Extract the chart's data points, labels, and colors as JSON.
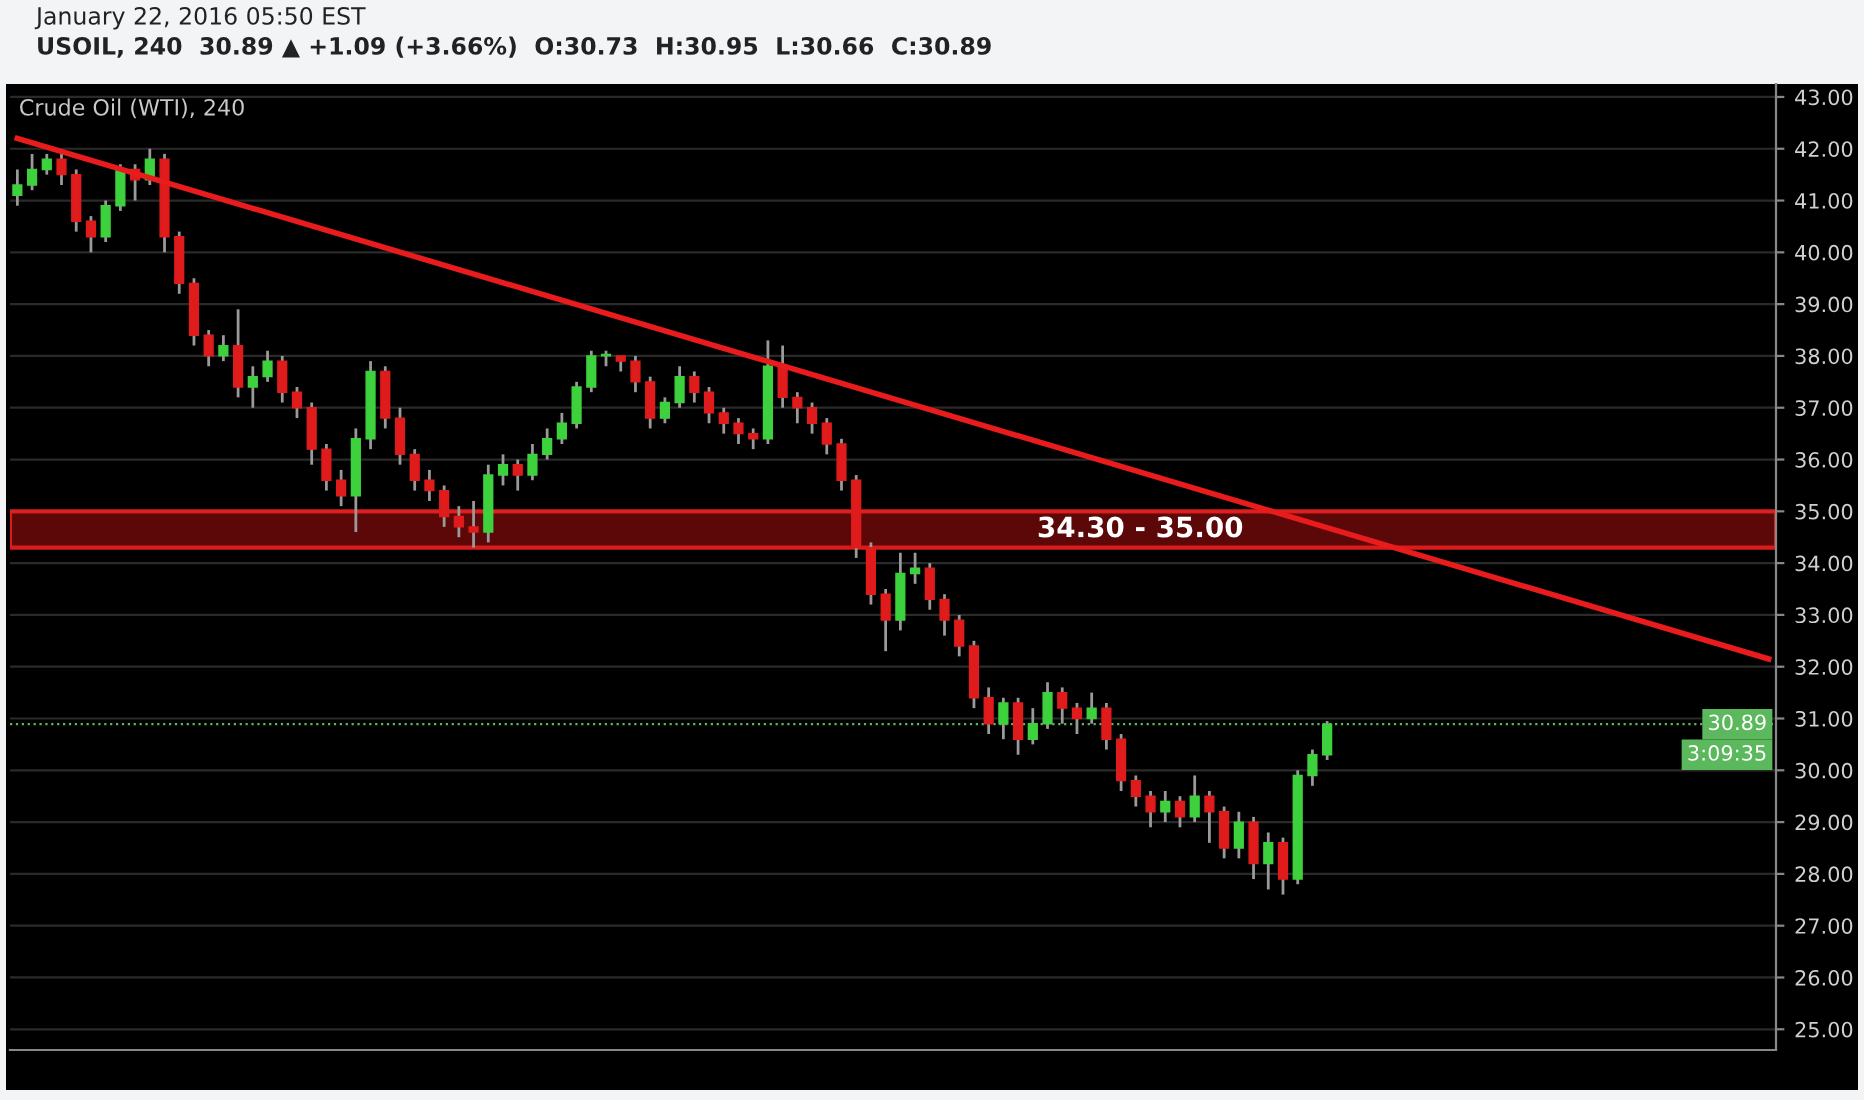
{
  "chart_data": {
    "type": "candlestick",
    "title": "Crude Oil (WTI), 240",
    "subtitle": "USOIL, 240  30.89 ▲ +1.09 (+3.66%)  O:30.73  H:30.95  L:30.66  C:30.89",
    "annotations": [
      "January 22, 2016 05:50 EST",
      "3:09:35"
    ],
    "categories": [
      null,
      null,
      null,
      null,
      null,
      null,
      null,
      null,
      null,
      null,
      null,
      null,
      null,
      null,
      null,
      null,
      null,
      null,
      null,
      null,
      null,
      null,
      null,
      null,
      null,
      null,
      null,
      null,
      null,
      null,
      null,
      null,
      null,
      null,
      null,
      null,
      null,
      null,
      null,
      null,
      null,
      null,
      null,
      null,
      null,
      null,
      null,
      null,
      null,
      null,
      null,
      null,
      null,
      null,
      null,
      null,
      null,
      null,
      null,
      null,
      null,
      null,
      null,
      null,
      null,
      null,
      null,
      null,
      null,
      null,
      null,
      null,
      null,
      null,
      null,
      null,
      null,
      null,
      null,
      null,
      null,
      null,
      null,
      null,
      null,
      null,
      null,
      null,
      null,
      null,
      null,
      null,
      null,
      null,
      null,
      null,
      null,
      null,
      null,
      null,
      null,
      null,
      null,
      null,
      null,
      null,
      null,
      null,
      null,
      null,
      null,
      null,
      null,
      null,
      null,
      null,
      null,
      null,
      null,
      null
    ],
    "ohlc": [
      [
        41.1,
        41.6,
        40.9,
        41.3
      ],
      [
        41.3,
        41.9,
        41.2,
        41.6
      ],
      [
        41.6,
        41.9,
        41.5,
        41.8
      ],
      [
        41.8,
        41.9,
        41.3,
        41.5
      ],
      [
        41.5,
        41.6,
        40.4,
        40.6
      ],
      [
        40.6,
        40.7,
        40.0,
        40.3
      ],
      [
        40.3,
        41.0,
        40.2,
        40.9
      ],
      [
        40.9,
        41.7,
        40.8,
        41.6
      ],
      [
        41.6,
        41.7,
        41.0,
        41.4
      ],
      [
        41.4,
        42.0,
        41.3,
        41.8
      ],
      [
        41.8,
        41.9,
        40.0,
        40.3
      ],
      [
        40.3,
        40.4,
        39.2,
        39.4
      ],
      [
        39.4,
        39.5,
        38.2,
        38.4
      ],
      [
        38.4,
        38.5,
        37.8,
        38.0
      ],
      [
        38.0,
        38.4,
        37.9,
        38.2
      ],
      [
        38.2,
        38.9,
        37.2,
        37.4
      ],
      [
        37.4,
        37.8,
        37.0,
        37.6
      ],
      [
        37.6,
        38.1,
        37.5,
        37.9
      ],
      [
        37.9,
        38.0,
        37.1,
        37.3
      ],
      [
        37.3,
        37.4,
        36.8,
        37.0
      ],
      [
        37.0,
        37.1,
        35.9,
        36.2
      ],
      [
        36.2,
        36.3,
        35.4,
        35.6
      ],
      [
        35.6,
        35.8,
        35.1,
        35.3
      ],
      [
        35.3,
        36.6,
        34.6,
        36.4
      ],
      [
        36.4,
        37.9,
        36.2,
        37.7
      ],
      [
        37.7,
        37.8,
        36.6,
        36.8
      ],
      [
        36.8,
        37.0,
        35.9,
        36.1
      ],
      [
        36.1,
        36.2,
        35.4,
        35.6
      ],
      [
        35.6,
        35.8,
        35.2,
        35.4
      ],
      [
        35.4,
        35.5,
        34.7,
        34.9
      ],
      [
        34.9,
        35.1,
        34.5,
        34.7
      ],
      [
        34.7,
        35.2,
        34.3,
        34.6
      ],
      [
        34.6,
        35.9,
        34.4,
        35.7
      ],
      [
        35.7,
        36.1,
        35.5,
        35.9
      ],
      [
        35.9,
        36.0,
        35.4,
        35.7
      ],
      [
        35.7,
        36.3,
        35.6,
        36.1
      ],
      [
        36.1,
        36.6,
        36.0,
        36.4
      ],
      [
        36.4,
        36.9,
        36.3,
        36.7
      ],
      [
        36.7,
        37.5,
        36.6,
        37.4
      ],
      [
        37.4,
        38.1,
        37.3,
        38.0
      ],
      [
        38.0,
        38.1,
        37.8,
        38.0
      ],
      [
        38.0,
        38.0,
        37.7,
        37.9
      ],
      [
        37.9,
        38.0,
        37.3,
        37.5
      ],
      [
        37.5,
        37.6,
        36.6,
        36.8
      ],
      [
        36.8,
        37.2,
        36.7,
        37.1
      ],
      [
        37.1,
        37.8,
        37.0,
        37.6
      ],
      [
        37.6,
        37.7,
        37.1,
        37.3
      ],
      [
        37.3,
        37.4,
        36.7,
        36.9
      ],
      [
        36.9,
        37.0,
        36.5,
        36.7
      ],
      [
        36.7,
        36.8,
        36.3,
        36.5
      ],
      [
        36.5,
        36.6,
        36.2,
        36.4
      ],
      [
        36.4,
        38.3,
        36.3,
        37.8
      ],
      [
        37.8,
        38.2,
        37.0,
        37.2
      ],
      [
        37.2,
        37.3,
        36.7,
        37.0
      ],
      [
        37.0,
        37.1,
        36.5,
        36.7
      ],
      [
        36.7,
        36.8,
        36.1,
        36.3
      ],
      [
        36.3,
        36.4,
        35.4,
        35.6
      ],
      [
        35.6,
        35.7,
        34.1,
        34.3
      ],
      [
        34.3,
        34.4,
        33.2,
        33.4
      ],
      [
        33.4,
        33.5,
        32.3,
        32.9
      ],
      [
        32.9,
        34.2,
        32.7,
        33.8
      ],
      [
        33.8,
        34.2,
        33.6,
        33.9
      ],
      [
        33.9,
        34.0,
        33.1,
        33.3
      ],
      [
        33.3,
        33.4,
        32.6,
        32.9
      ],
      [
        32.9,
        33.0,
        32.2,
        32.4
      ],
      [
        32.4,
        32.5,
        31.2,
        31.4
      ],
      [
        31.4,
        31.6,
        30.7,
        30.9
      ],
      [
        30.9,
        31.4,
        30.6,
        31.3
      ],
      [
        31.3,
        31.4,
        30.3,
        30.6
      ],
      [
        30.6,
        31.2,
        30.5,
        30.9
      ],
      [
        30.9,
        31.7,
        30.8,
        31.5
      ],
      [
        31.5,
        31.6,
        30.9,
        31.2
      ],
      [
        31.2,
        31.3,
        30.7,
        31.0
      ],
      [
        31.0,
        31.5,
        30.9,
        31.2
      ],
      [
        31.2,
        31.3,
        30.4,
        30.6
      ],
      [
        30.6,
        30.7,
        29.6,
        29.8
      ],
      [
        29.8,
        29.9,
        29.3,
        29.5
      ],
      [
        29.5,
        29.6,
        28.9,
        29.2
      ],
      [
        29.2,
        29.6,
        29.0,
        29.4
      ],
      [
        29.4,
        29.5,
        28.9,
        29.1
      ],
      [
        29.1,
        29.9,
        29.0,
        29.5
      ],
      [
        29.5,
        29.6,
        28.6,
        29.2
      ],
      [
        29.2,
        29.3,
        28.3,
        28.5
      ],
      [
        28.5,
        29.2,
        28.3,
        29.0
      ],
      [
        29.0,
        29.1,
        27.9,
        28.2
      ],
      [
        28.2,
        28.8,
        27.7,
        28.6
      ],
      [
        28.6,
        28.7,
        27.6,
        27.9
      ],
      [
        27.9,
        30.0,
        27.8,
        29.9
      ],
      [
        29.9,
        30.4,
        29.7,
        30.3
      ],
      [
        30.3,
        30.95,
        30.2,
        30.89
      ],
      null,
      null,
      null,
      null,
      null,
      null,
      null,
      null,
      null,
      null,
      null,
      null,
      null,
      null,
      null,
      null,
      null,
      null,
      null,
      null,
      null,
      null,
      null,
      null,
      null,
      null,
      null,
      null,
      null,
      null
    ],
    "series": [
      {
        "type": "line",
        "values": [
          42.2,
          null,
          null,
          null,
          null,
          null,
          null,
          null,
          null,
          null,
          null,
          null,
          null,
          null,
          null,
          null,
          null,
          null,
          null,
          null,
          null,
          null,
          null,
          null,
          null,
          null,
          null,
          null,
          null,
          null,
          null,
          null,
          null,
          null,
          null,
          null,
          null,
          null,
          null,
          null,
          null,
          null,
          null,
          null,
          null,
          null,
          null,
          null,
          null,
          null,
          null,
          null,
          null,
          null,
          null,
          null,
          null,
          null,
          null,
          null,
          null,
          null,
          null,
          null,
          null,
          null,
          null,
          null,
          null,
          null,
          null,
          null,
          null,
          null,
          null,
          null,
          null,
          null,
          null,
          null,
          null,
          null,
          null,
          null,
          null,
          null,
          null,
          null,
          null,
          null,
          null,
          null,
          null,
          null,
          null,
          null,
          null,
          null,
          null,
          null,
          null,
          null,
          null,
          null,
          null,
          null,
          null,
          null,
          null,
          null,
          null,
          null,
          null,
          null,
          null,
          null,
          null,
          null,
          null,
          32.15
        ],
        "color": "#e81c1c"
      }
    ],
    "bands": [
      {
        "axis": "y",
        "from": 34.3,
        "to": 35.0,
        "label": "34.30 - 35.00",
        "color": "#6e0a0a"
      }
    ],
    "ref_lines": [
      {
        "axis": "y",
        "value": 30.89,
        "label": "30.89",
        "color": "#5cb85c",
        "line_style": "dotted"
      }
    ],
    "ylim": [
      24.6,
      43.25
    ],
    "yticks": [
      {
        "value": 25,
        "label": "25.00"
      },
      {
        "value": 26,
        "label": "26.00"
      },
      {
        "value": 27,
        "label": "27.00"
      },
      {
        "value": 28,
        "label": "28.00"
      },
      {
        "value": 29,
        "label": "29.00"
      },
      {
        "value": 30,
        "label": "30.00"
      },
      {
        "value": 31,
        "label": "31.00"
      },
      {
        "value": 32,
        "label": "32.00"
      },
      {
        "value": 33,
        "label": "33.00"
      },
      {
        "value": 34,
        "label": "34.00"
      },
      {
        "value": 35,
        "label": "35.00"
      },
      {
        "value": 36,
        "label": "36.00"
      },
      {
        "value": 37,
        "label": "37.00"
      },
      {
        "value": 38,
        "label": "38.00"
      },
      {
        "value": 39,
        "label": "39.00"
      },
      {
        "value": 40,
        "label": "40.00"
      },
      {
        "value": 41,
        "label": "41.00"
      },
      {
        "value": 42,
        "label": "42.00"
      },
      {
        "value": 43,
        "label": "43.00"
      }
    ],
    "tick_labels": "y",
    "grid": "y"
  }
}
